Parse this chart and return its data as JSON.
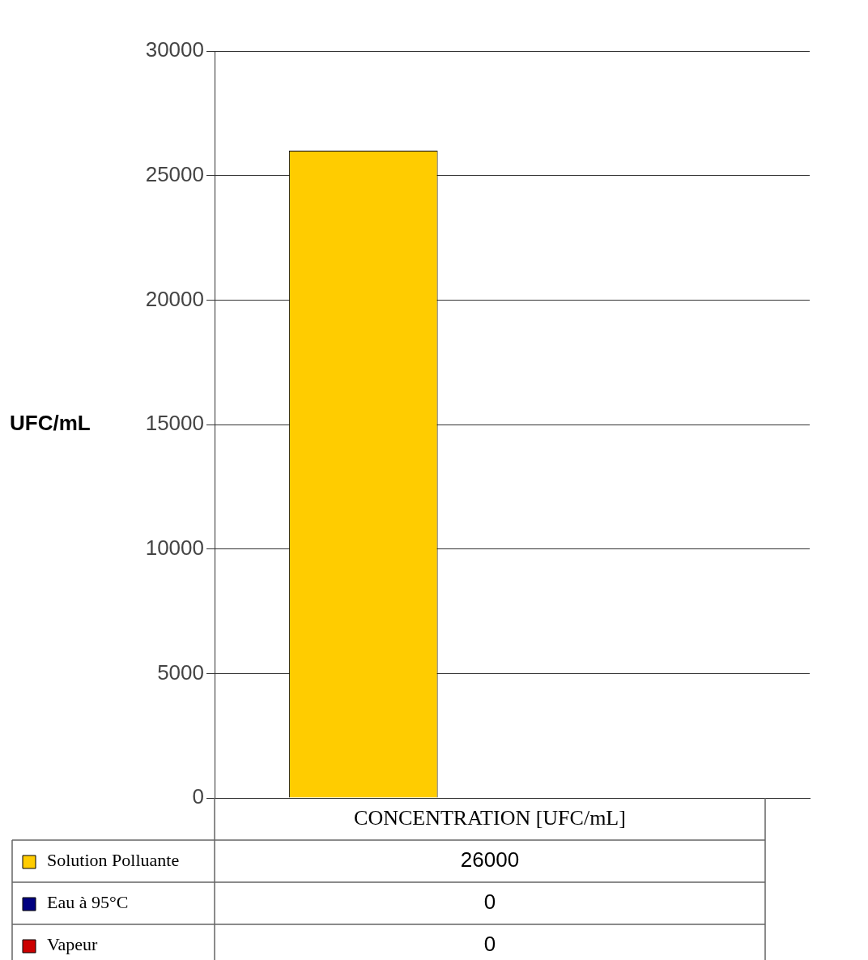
{
  "chart_data": {
    "type": "bar",
    "ylabel": "UFC/mL",
    "categories": [
      "CONCENTRATION [UFC/mL]"
    ],
    "series": [
      {
        "name": "Solution Polluante",
        "color": "#ffcc00",
        "values": [
          26000
        ]
      },
      {
        "name": "Eau à 95°C",
        "color": "#000080",
        "values": [
          0
        ]
      },
      {
        "name": "Vapeur",
        "color": "#cc0000",
        "values": [
          0
        ]
      }
    ],
    "ylim": [
      0,
      30000
    ],
    "yticks": [
      0,
      5000,
      10000,
      15000,
      20000,
      25000,
      30000
    ],
    "grid": "y",
    "legend": "bottom left",
    "annotations": [
      "26000",
      "0",
      "0"
    ],
    "tick_labels": "y"
  }
}
